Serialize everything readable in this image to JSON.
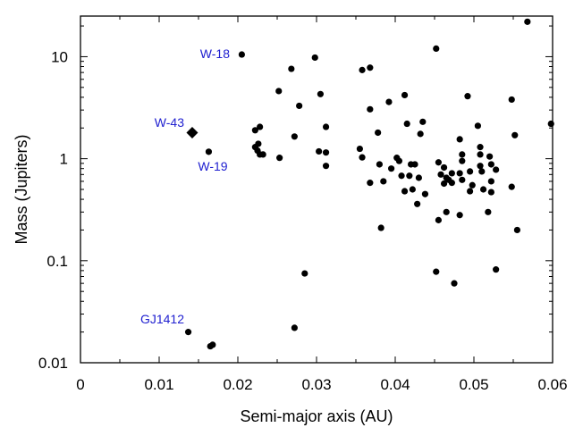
{
  "chart_data": {
    "type": "scatter",
    "xlabel": "Semi-major axis (AU)",
    "ylabel": "Mass (Jupiters)",
    "xlim": [
      0,
      0.06
    ],
    "ylim": [
      0.01,
      25
    ],
    "yscale": "log",
    "x_ticks": [
      "0",
      "0.01",
      "0.02",
      "0.03",
      "0.04",
      "0.05",
      "0.06"
    ],
    "y_ticks": [
      {
        "value": 0.01,
        "label": "0.01"
      },
      {
        "value": 0.1,
        "label": "0.1"
      },
      {
        "value": 1,
        "label": "1"
      },
      {
        "value": 10,
        "label": "10"
      }
    ],
    "grid": false,
    "marker_color": "#000000",
    "annotation_color": "#2020d0",
    "highlight": {
      "name": "W-43",
      "x": 0.0142,
      "y": 1.8,
      "marker": "diamond"
    },
    "annotations": [
      {
        "label": "W-18",
        "x": 0.0205,
        "y": 10.5
      },
      {
        "label": "W-43",
        "x": 0.0142,
        "y": 1.8
      },
      {
        "label": "W-19",
        "x": 0.0163,
        "y": 1.17
      },
      {
        "label": "GJ1412",
        "x": 0.0137,
        "y": 0.02
      }
    ],
    "points": [
      [
        0.0205,
        10.5
      ],
      [
        0.0163,
        1.17
      ],
      [
        0.0137,
        0.02
      ],
      [
        0.0165,
        0.0145
      ],
      [
        0.0168,
        0.015
      ],
      [
        0.0222,
        1.9
      ],
      [
        0.0228,
        2.05
      ],
      [
        0.0222,
        1.3
      ],
      [
        0.0226,
        1.4
      ],
      [
        0.0225,
        1.2
      ],
      [
        0.0228,
        1.1
      ],
      [
        0.0232,
        1.1
      ],
      [
        0.0252,
        4.6
      ],
      [
        0.0268,
        7.6
      ],
      [
        0.0253,
        1.02
      ],
      [
        0.0272,
        1.65
      ],
      [
        0.0278,
        3.3
      ],
      [
        0.0272,
        0.022
      ],
      [
        0.0285,
        0.075
      ],
      [
        0.0298,
        9.8
      ],
      [
        0.0305,
        4.3
      ],
      [
        0.0312,
        2.05
      ],
      [
        0.0303,
        1.18
      ],
      [
        0.0312,
        1.15
      ],
      [
        0.0312,
        0.85
      ],
      [
        0.0358,
        7.4
      ],
      [
        0.0368,
        7.8
      ],
      [
        0.0355,
        1.25
      ],
      [
        0.0358,
        1.03
      ],
      [
        0.0368,
        3.05
      ],
      [
        0.0378,
        1.8
      ],
      [
        0.0368,
        0.58
      ],
      [
        0.038,
        0.88
      ],
      [
        0.0385,
        0.6
      ],
      [
        0.0382,
        0.21
      ],
      [
        0.0392,
        3.6
      ],
      [
        0.0395,
        0.8
      ],
      [
        0.0402,
        1.02
      ],
      [
        0.0405,
        0.95
      ],
      [
        0.0408,
        0.68
      ],
      [
        0.0412,
        4.2
      ],
      [
        0.0412,
        0.48
      ],
      [
        0.0415,
        2.2
      ],
      [
        0.0418,
        0.68
      ],
      [
        0.042,
        0.88
      ],
      [
        0.0425,
        0.88
      ],
      [
        0.0422,
        0.5
      ],
      [
        0.0428,
        0.36
      ],
      [
        0.043,
        0.65
      ],
      [
        0.0432,
        1.75
      ],
      [
        0.0435,
        2.3
      ],
      [
        0.0438,
        0.45
      ],
      [
        0.0452,
        12.0
      ],
      [
        0.0455,
        0.92
      ],
      [
        0.0458,
        0.7
      ],
      [
        0.0455,
        0.25
      ],
      [
        0.0452,
        0.078
      ],
      [
        0.0462,
        0.82
      ],
      [
        0.0465,
        0.65
      ],
      [
        0.0462,
        0.57
      ],
      [
        0.0465,
        0.3
      ],
      [
        0.0468,
        0.62
      ],
      [
        0.0472,
        0.58
      ],
      [
        0.0472,
        0.72
      ],
      [
        0.0475,
        0.06
      ],
      [
        0.0482,
        1.55
      ],
      [
        0.0485,
        1.1
      ],
      [
        0.0485,
        0.95
      ],
      [
        0.0482,
        0.72
      ],
      [
        0.0485,
        0.62
      ],
      [
        0.0482,
        0.28
      ],
      [
        0.0492,
        4.1
      ],
      [
        0.0495,
        0.75
      ],
      [
        0.0495,
        0.48
      ],
      [
        0.0498,
        0.55
      ],
      [
        0.0505,
        2.1
      ],
      [
        0.0508,
        1.3
      ],
      [
        0.0508,
        1.1
      ],
      [
        0.0508,
        0.85
      ],
      [
        0.051,
        0.75
      ],
      [
        0.0512,
        0.5
      ],
      [
        0.0518,
        0.3
      ],
      [
        0.052,
        1.05
      ],
      [
        0.0522,
        0.88
      ],
      [
        0.0522,
        0.6
      ],
      [
        0.0522,
        0.47
      ],
      [
        0.0528,
        0.78
      ],
      [
        0.0528,
        0.082
      ],
      [
        0.0548,
        3.8
      ],
      [
        0.0548,
        0.53
      ],
      [
        0.0552,
        1.7
      ],
      [
        0.0555,
        0.2
      ],
      [
        0.0568,
        22.0
      ],
      [
        0.0598,
        2.2
      ]
    ]
  }
}
